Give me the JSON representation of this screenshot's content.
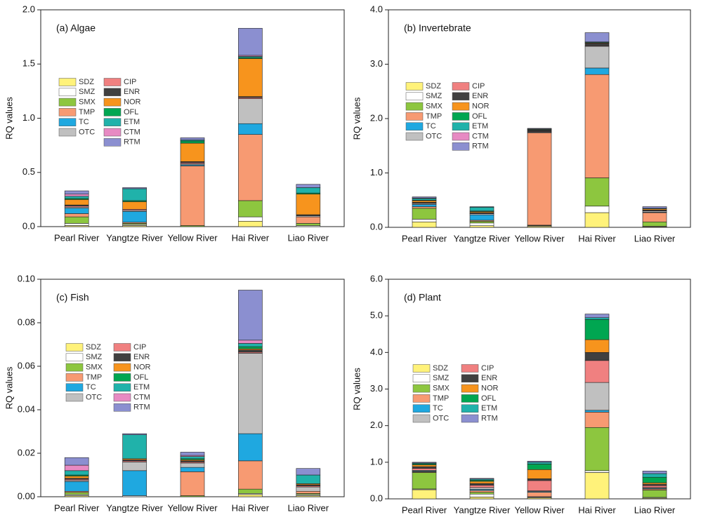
{
  "chart_data": [
    {
      "type": "bar",
      "stacked": true,
      "title": "(a) Algae",
      "ylabel": "RQ values",
      "categories": [
        "Pearl River",
        "Yangtze River",
        "Yellow River",
        "Hai River",
        "Liao River"
      ],
      "ylim": [
        0,
        2.0
      ],
      "yticks": [
        {
          "value": 0,
          "label": "0.0"
        },
        {
          "value": 0.5,
          "label": "0.5"
        },
        {
          "value": 1.0,
          "label": "1.0"
        },
        {
          "value": 1.5,
          "label": "1.5"
        },
        {
          "value": 2.0,
          "label": "2.0"
        }
      ],
      "series": [
        {
          "name": "SDZ",
          "color": "#fff27a",
          "values": [
            0.01,
            0.01,
            0,
            0.05,
            0
          ]
        },
        {
          "name": "SMZ",
          "color": "#ffffff",
          "values": [
            0.02,
            0.01,
            0,
            0.04,
            0.01
          ]
        },
        {
          "name": "SMX",
          "color": "#8dc63f",
          "values": [
            0.06,
            0.01,
            0.01,
            0.15,
            0.02
          ]
        },
        {
          "name": "TMP",
          "color": "#f79a72",
          "values": [
            0.03,
            0.01,
            0.55,
            0.61,
            0.06
          ]
        },
        {
          "name": "TC",
          "color": "#1fa8e0",
          "values": [
            0.05,
            0.1,
            0.01,
            0.1,
            0
          ]
        },
        {
          "name": "OTC",
          "color": "#c0c0c0",
          "values": [
            0.01,
            0.01,
            0.01,
            0.23,
            0.01
          ]
        },
        {
          "name": "CIP",
          "color": "#f08080",
          "values": [
            0.01,
            0.01,
            0.01,
            0.01,
            0
          ]
        },
        {
          "name": "ENR",
          "color": "#404040",
          "values": [
            0.01,
            0,
            0.01,
            0.01,
            0.01
          ]
        },
        {
          "name": "NOR",
          "color": "#f7941d",
          "values": [
            0.05,
            0.07,
            0.17,
            0.35,
            0.19
          ]
        },
        {
          "name": "OFL",
          "color": "#00a651",
          "values": [
            0.01,
            0.01,
            0.02,
            0.01,
            0.01
          ]
        },
        {
          "name": "ETM",
          "color": "#20b2aa",
          "values": [
            0.02,
            0.11,
            0.01,
            0.01,
            0.05
          ]
        },
        {
          "name": "CTM",
          "color": "#e78ac3",
          "values": [
            0.02,
            0,
            0,
            0.01,
            0
          ]
        },
        {
          "name": "RTM",
          "color": "#8b8fd0",
          "values": [
            0.03,
            0.01,
            0.02,
            0.25,
            0.03
          ]
        }
      ]
    },
    {
      "type": "bar",
      "stacked": true,
      "title": "(b) Invertebrate",
      "ylabel": "RQ values",
      "categories": [
        "Pearl River",
        "Yangtze River",
        "Yellow River",
        "Hai River",
        "Liao River"
      ],
      "ylim": [
        0,
        4.0
      ],
      "yticks": [
        {
          "value": 0,
          "label": "0.0"
        },
        {
          "value": 1.0,
          "label": "1.0"
        },
        {
          "value": 2.0,
          "label": "2.0"
        },
        {
          "value": 3.0,
          "label": "3.0"
        },
        {
          "value": 4.0,
          "label": "4.0"
        }
      ],
      "series": [
        {
          "name": "SDZ",
          "color": "#fff27a",
          "values": [
            0.1,
            0.03,
            0.02,
            0.27,
            0.01
          ]
        },
        {
          "name": "SMZ",
          "color": "#ffffff",
          "values": [
            0.05,
            0.05,
            0.01,
            0.12,
            0.01
          ]
        },
        {
          "name": "SMX",
          "color": "#8dc63f",
          "values": [
            0.2,
            0.03,
            0.01,
            0.52,
            0.08
          ]
        },
        {
          "name": "TMP",
          "color": "#f79a72",
          "values": [
            0.03,
            0.02,
            1.7,
            1.9,
            0.17
          ]
        },
        {
          "name": "TC",
          "color": "#1fa8e0",
          "values": [
            0.04,
            0.1,
            0.01,
            0.12,
            0.01
          ]
        },
        {
          "name": "OTC",
          "color": "#c0c0c0",
          "values": [
            0.02,
            0.02,
            0.01,
            0.4,
            0.02
          ]
        },
        {
          "name": "CIP",
          "color": "#f08080",
          "values": [
            0.01,
            0.01,
            0.01,
            0.01,
            0.01
          ]
        },
        {
          "name": "ENR",
          "color": "#404040",
          "values": [
            0.01,
            0.01,
            0.02,
            0.04,
            0.01
          ]
        },
        {
          "name": "NOR",
          "color": "#f7941d",
          "values": [
            0.03,
            0.02,
            0.01,
            0.01,
            0.02
          ]
        },
        {
          "name": "OFL",
          "color": "#00a651",
          "values": [
            0.01,
            0.01,
            0,
            0.01,
            0
          ]
        },
        {
          "name": "ETM",
          "color": "#20b2aa",
          "values": [
            0.03,
            0.07,
            0.01,
            0.01,
            0.01
          ]
        },
        {
          "name": "CTM",
          "color": "#e78ac3",
          "values": [
            0.01,
            0,
            0,
            0,
            0
          ]
        },
        {
          "name": "RTM",
          "color": "#8b8fd0",
          "values": [
            0.02,
            0.01,
            0.01,
            0.17,
            0.03
          ]
        }
      ]
    },
    {
      "type": "bar",
      "stacked": true,
      "title": "(c) Fish",
      "ylabel": "RQ values",
      "categories": [
        "Pearl River",
        "Yangtze River",
        "Yellow River",
        "Hai River",
        "Liao River"
      ],
      "ylim": [
        0,
        0.1
      ],
      "yticks": [
        {
          "value": 0,
          "label": "0.00"
        },
        {
          "value": 0.02,
          "label": "0.02"
        },
        {
          "value": 0.04,
          "label": "0.04"
        },
        {
          "value": 0.06,
          "label": "0.06"
        },
        {
          "value": 0.08,
          "label": "0.08"
        },
        {
          "value": 0.1,
          "label": "0.10"
        }
      ],
      "series": [
        {
          "name": "SDZ",
          "color": "#fff27a",
          "values": [
            0.0005,
            0,
            0,
            0.001,
            0.0005
          ]
        },
        {
          "name": "SMZ",
          "color": "#ffffff",
          "values": [
            0.0005,
            0.0005,
            0,
            0.0005,
            0.0005
          ]
        },
        {
          "name": "SMX",
          "color": "#8dc63f",
          "values": [
            0.001,
            0,
            0.0005,
            0.002,
            0.0005
          ]
        },
        {
          "name": "TMP",
          "color": "#f79a72",
          "values": [
            0.0005,
            0,
            0.011,
            0.013,
            0.001
          ]
        },
        {
          "name": "TC",
          "color": "#1fa8e0",
          "values": [
            0.0045,
            0.0115,
            0.002,
            0.0125,
            0
          ]
        },
        {
          "name": "OTC",
          "color": "#c0c0c0",
          "values": [
            0.0005,
            0.004,
            0.002,
            0.037,
            0.002
          ]
        },
        {
          "name": "CIP",
          "color": "#f08080",
          "values": [
            0.0005,
            0.0005,
            0.0005,
            0.0005,
            0.0005
          ]
        },
        {
          "name": "ENR",
          "color": "#404040",
          "values": [
            0.0005,
            0.0005,
            0.0005,
            0.001,
            0.0005
          ]
        },
        {
          "name": "NOR",
          "color": "#f7941d",
          "values": [
            0.001,
            0.0005,
            0.0005,
            0.0005,
            0.0005
          ]
        },
        {
          "name": "OFL",
          "color": "#00a651",
          "values": [
            0.0005,
            0,
            0.0005,
            0.001,
            0
          ]
        },
        {
          "name": "ETM",
          "color": "#20b2aa",
          "values": [
            0.002,
            0.011,
            0.001,
            0.0015,
            0.004
          ]
        },
        {
          "name": "CTM",
          "color": "#e78ac3",
          "values": [
            0.0025,
            0,
            0.0005,
            0.0015,
            0
          ]
        },
        {
          "name": "RTM",
          "color": "#8b8fd0",
          "values": [
            0.0035,
            0.0005,
            0.0015,
            0.023,
            0.003
          ]
        }
      ]
    },
    {
      "type": "bar",
      "stacked": true,
      "title": "(d) Plant",
      "ylabel": "RQ values",
      "categories": [
        "Pearl River",
        "Yangtze River",
        "Yellow River",
        "Hai River",
        "Liao River"
      ],
      "ylim": [
        0,
        6.0
      ],
      "yticks": [
        {
          "value": 0,
          "label": "0.0"
        },
        {
          "value": 1.0,
          "label": "1.0"
        },
        {
          "value": 2.0,
          "label": "2.0"
        },
        {
          "value": 3.0,
          "label": "3.0"
        },
        {
          "value": 4.0,
          "label": "4.0"
        },
        {
          "value": 5.0,
          "label": "5.0"
        },
        {
          "value": 6.0,
          "label": "6.0"
        }
      ],
      "series": [
        {
          "name": "SDZ",
          "color": "#fff27a",
          "values": [
            0.25,
            0.05,
            0.03,
            0.72,
            0.02
          ]
        },
        {
          "name": "SMZ",
          "color": "#ffffff",
          "values": [
            0.02,
            0.08,
            0.02,
            0.05,
            0.02
          ]
        },
        {
          "name": "SMX",
          "color": "#8dc63f",
          "values": [
            0.45,
            0.05,
            0.01,
            1.18,
            0.2
          ]
        },
        {
          "name": "TMP",
          "color": "#f79a72",
          "values": [
            0.02,
            0.05,
            0.12,
            0.42,
            0.03
          ]
        },
        {
          "name": "TC",
          "color": "#1fa8e0",
          "values": [
            0.02,
            0.03,
            0.02,
            0.05,
            0.02
          ]
        },
        {
          "name": "OTC",
          "color": "#c0c0c0",
          "values": [
            0.02,
            0.05,
            0.02,
            0.76,
            0.02
          ]
        },
        {
          "name": "CIP",
          "color": "#f08080",
          "values": [
            0.05,
            0.06,
            0.28,
            0.6,
            0.05
          ]
        },
        {
          "name": "ENR",
          "color": "#404040",
          "values": [
            0.05,
            0.05,
            0.05,
            0.22,
            0.04
          ]
        },
        {
          "name": "NOR",
          "color": "#f7941d",
          "values": [
            0.05,
            0.06,
            0.25,
            0.35,
            0.04
          ]
        },
        {
          "name": "OFL",
          "color": "#00a651",
          "values": [
            0.03,
            0.03,
            0.15,
            0.55,
            0.15
          ]
        },
        {
          "name": "ETM",
          "color": "#20b2aa",
          "values": [
            0.02,
            0.03,
            0.05,
            0.05,
            0.1
          ]
        },
        {
          "name": "RTM",
          "color": "#8b8fd0",
          "values": [
            0.02,
            0.02,
            0.03,
            0.1,
            0.07
          ]
        }
      ]
    }
  ]
}
